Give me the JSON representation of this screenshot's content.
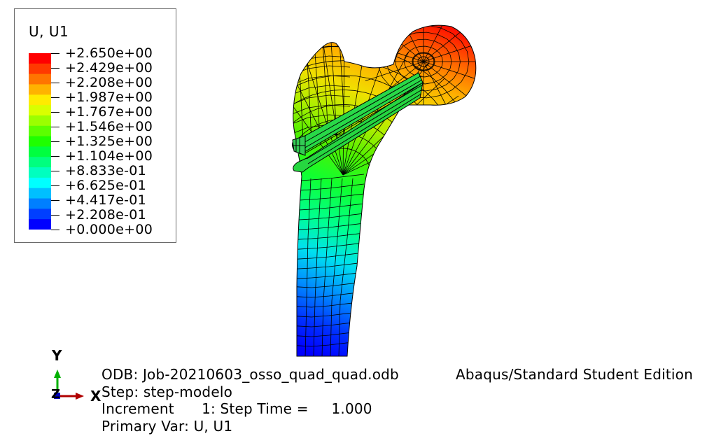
{
  "legend": {
    "title": "U, U1",
    "labels": [
      "+2.650e+00",
      "+2.429e+00",
      "+2.208e+00",
      "+1.987e+00",
      "+1.767e+00",
      "+1.546e+00",
      "+1.325e+00",
      "+1.104e+00",
      "+8.833e-01",
      "+6.625e-01",
      "+4.417e-01",
      "+2.208e-01",
      "+0.000e+00"
    ],
    "colors": [
      "#ff0000",
      "#ff3a00",
      "#ff7500",
      "#ffb200",
      "#ffeb00",
      "#d9ff00",
      "#9bff00",
      "#5cff00",
      "#1fff00",
      "#00ff3f",
      "#00ff7f",
      "#00ffbf",
      "#00ffff",
      "#00bfff",
      "#007fff",
      "#003fff",
      "#0000ff"
    ]
  },
  "triad": {
    "y_label": "Y",
    "x_label": "X",
    "z_label": "Z"
  },
  "info": {
    "odb": "ODB: Job-20210603_osso_quad_quad.odb",
    "edition": "Abaqus/Standard Student Edition",
    "step": "Step: step-modelo",
    "increment": "Increment      1: Step Time =     1.000",
    "primary_var": "Primary Var: U, U1"
  }
}
